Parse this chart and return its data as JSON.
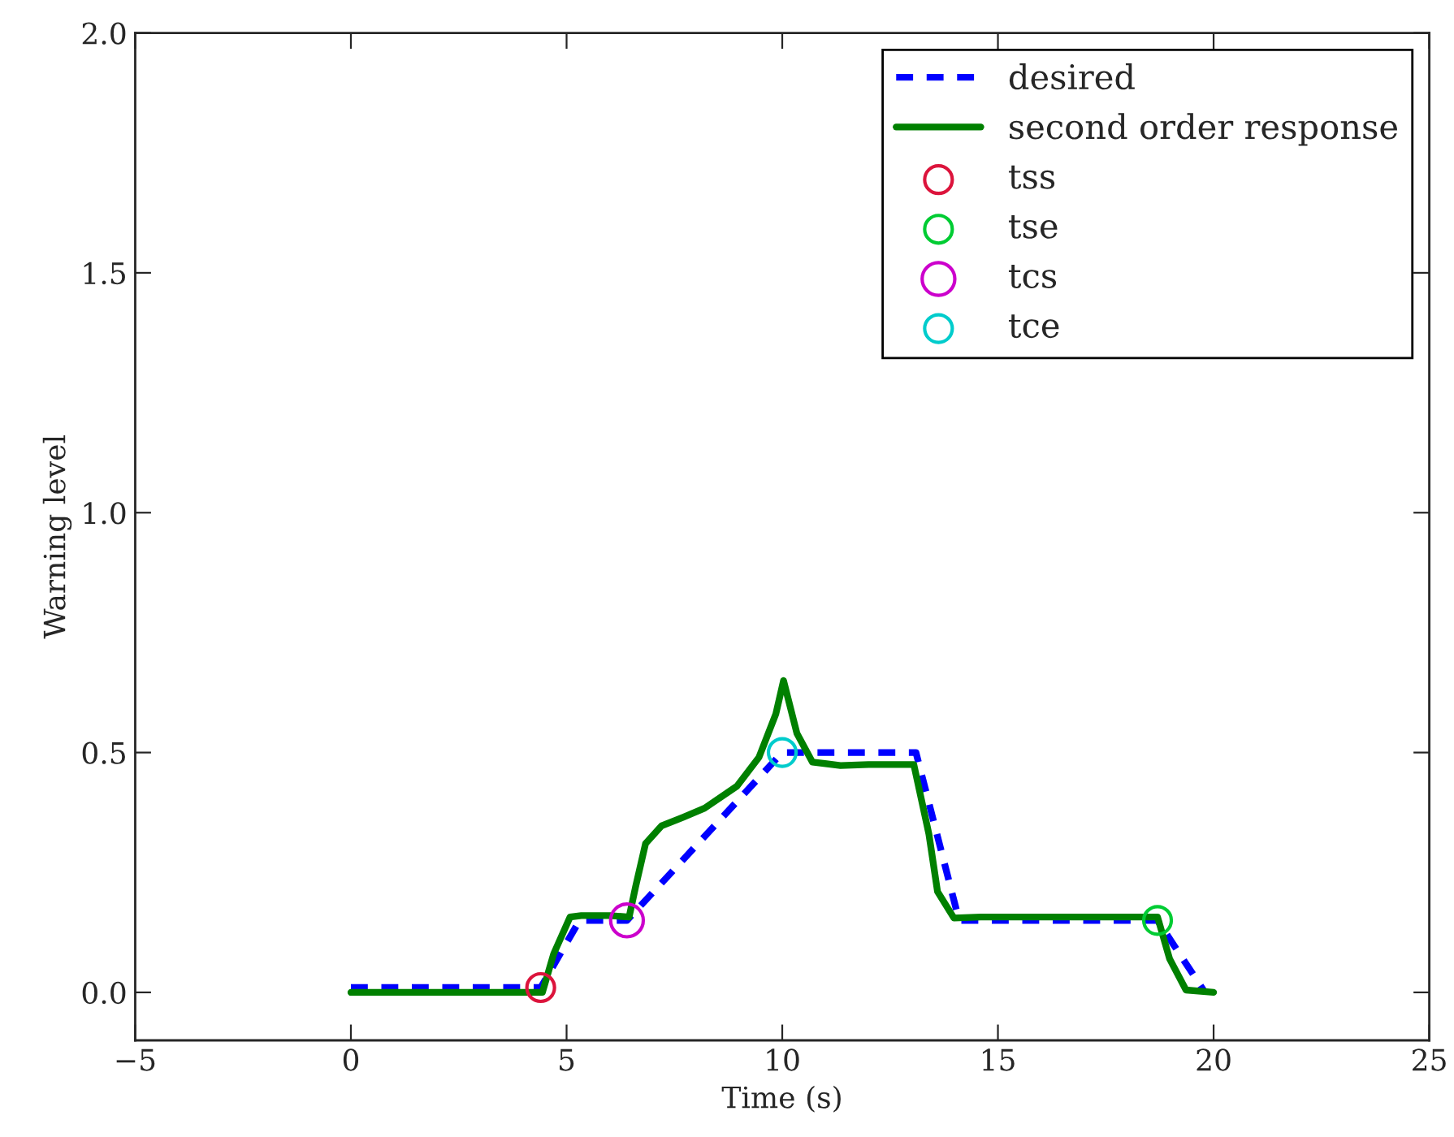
{
  "chart_data": {
    "type": "line",
    "xlabel": "Time (s)",
    "ylabel": "Warning level",
    "xlim": [
      -5,
      25
    ],
    "xticks": [
      {
        "value": -5,
        "label": "−5"
      },
      0,
      5,
      10,
      15,
      20,
      25
    ],
    "ylim": [
      -0.1,
      2.0
    ],
    "yticks": [
      {
        "value": 0,
        "label": "0.0"
      },
      0.5,
      {
        "value": 1,
        "label": "1.0"
      },
      1.5,
      {
        "value": 2,
        "label": "2.0"
      }
    ],
    "grid": false,
    "legend": "top right",
    "series": [
      {
        "name": "desired",
        "type": "line",
        "line_style": "dashed",
        "color": "#0000ff",
        "x": [
          0,
          4.4,
          5.3,
          6.4,
          10,
          13.1,
          14.1,
          18.7,
          19.8
        ],
        "values": [
          0.01,
          0.01,
          0.15,
          0.15,
          0.5,
          0.5,
          0.15,
          0.15,
          0.0
        ]
      },
      {
        "name": "second order response",
        "type": "line",
        "line_style": "solid",
        "color": "#008000",
        "x": [
          0,
          4.44,
          4.7,
          5.08,
          5.34,
          6.0,
          6.45,
          6.6,
          6.83,
          7.2,
          7.7,
          8.2,
          8.95,
          9.46,
          9.85,
          10.03,
          10.34,
          10.7,
          11.35,
          12.0,
          13.05,
          13.4,
          13.6,
          13.98,
          14.6,
          18.7,
          18.98,
          19.36,
          20.0
        ],
        "values": [
          0.0,
          0.0,
          0.08,
          0.157,
          0.16,
          0.16,
          0.157,
          0.22,
          0.31,
          0.347,
          0.365,
          0.384,
          0.43,
          0.49,
          0.58,
          0.65,
          0.54,
          0.48,
          0.473,
          0.475,
          0.475,
          0.33,
          0.21,
          0.155,
          0.157,
          0.157,
          0.07,
          0.005,
          0.0
        ]
      },
      {
        "name": "tss",
        "type": "scatter",
        "marker": "circle",
        "color": "#dc143c",
        "x": [
          4.4
        ],
        "values": [
          0.01
        ]
      },
      {
        "name": "tse",
        "type": "scatter",
        "marker": "circle",
        "color": "#00cc33",
        "x": [
          18.7
        ],
        "values": [
          0.15
        ]
      },
      {
        "name": "tcs",
        "type": "scatter",
        "marker": "circle",
        "color": "#cc00cc",
        "x": [
          6.4
        ],
        "values": [
          0.15
        ]
      },
      {
        "name": "tce",
        "type": "scatter",
        "marker": "circle",
        "color": "#00cccc",
        "x": [
          10
        ],
        "values": [
          0.5
        ]
      }
    ]
  }
}
